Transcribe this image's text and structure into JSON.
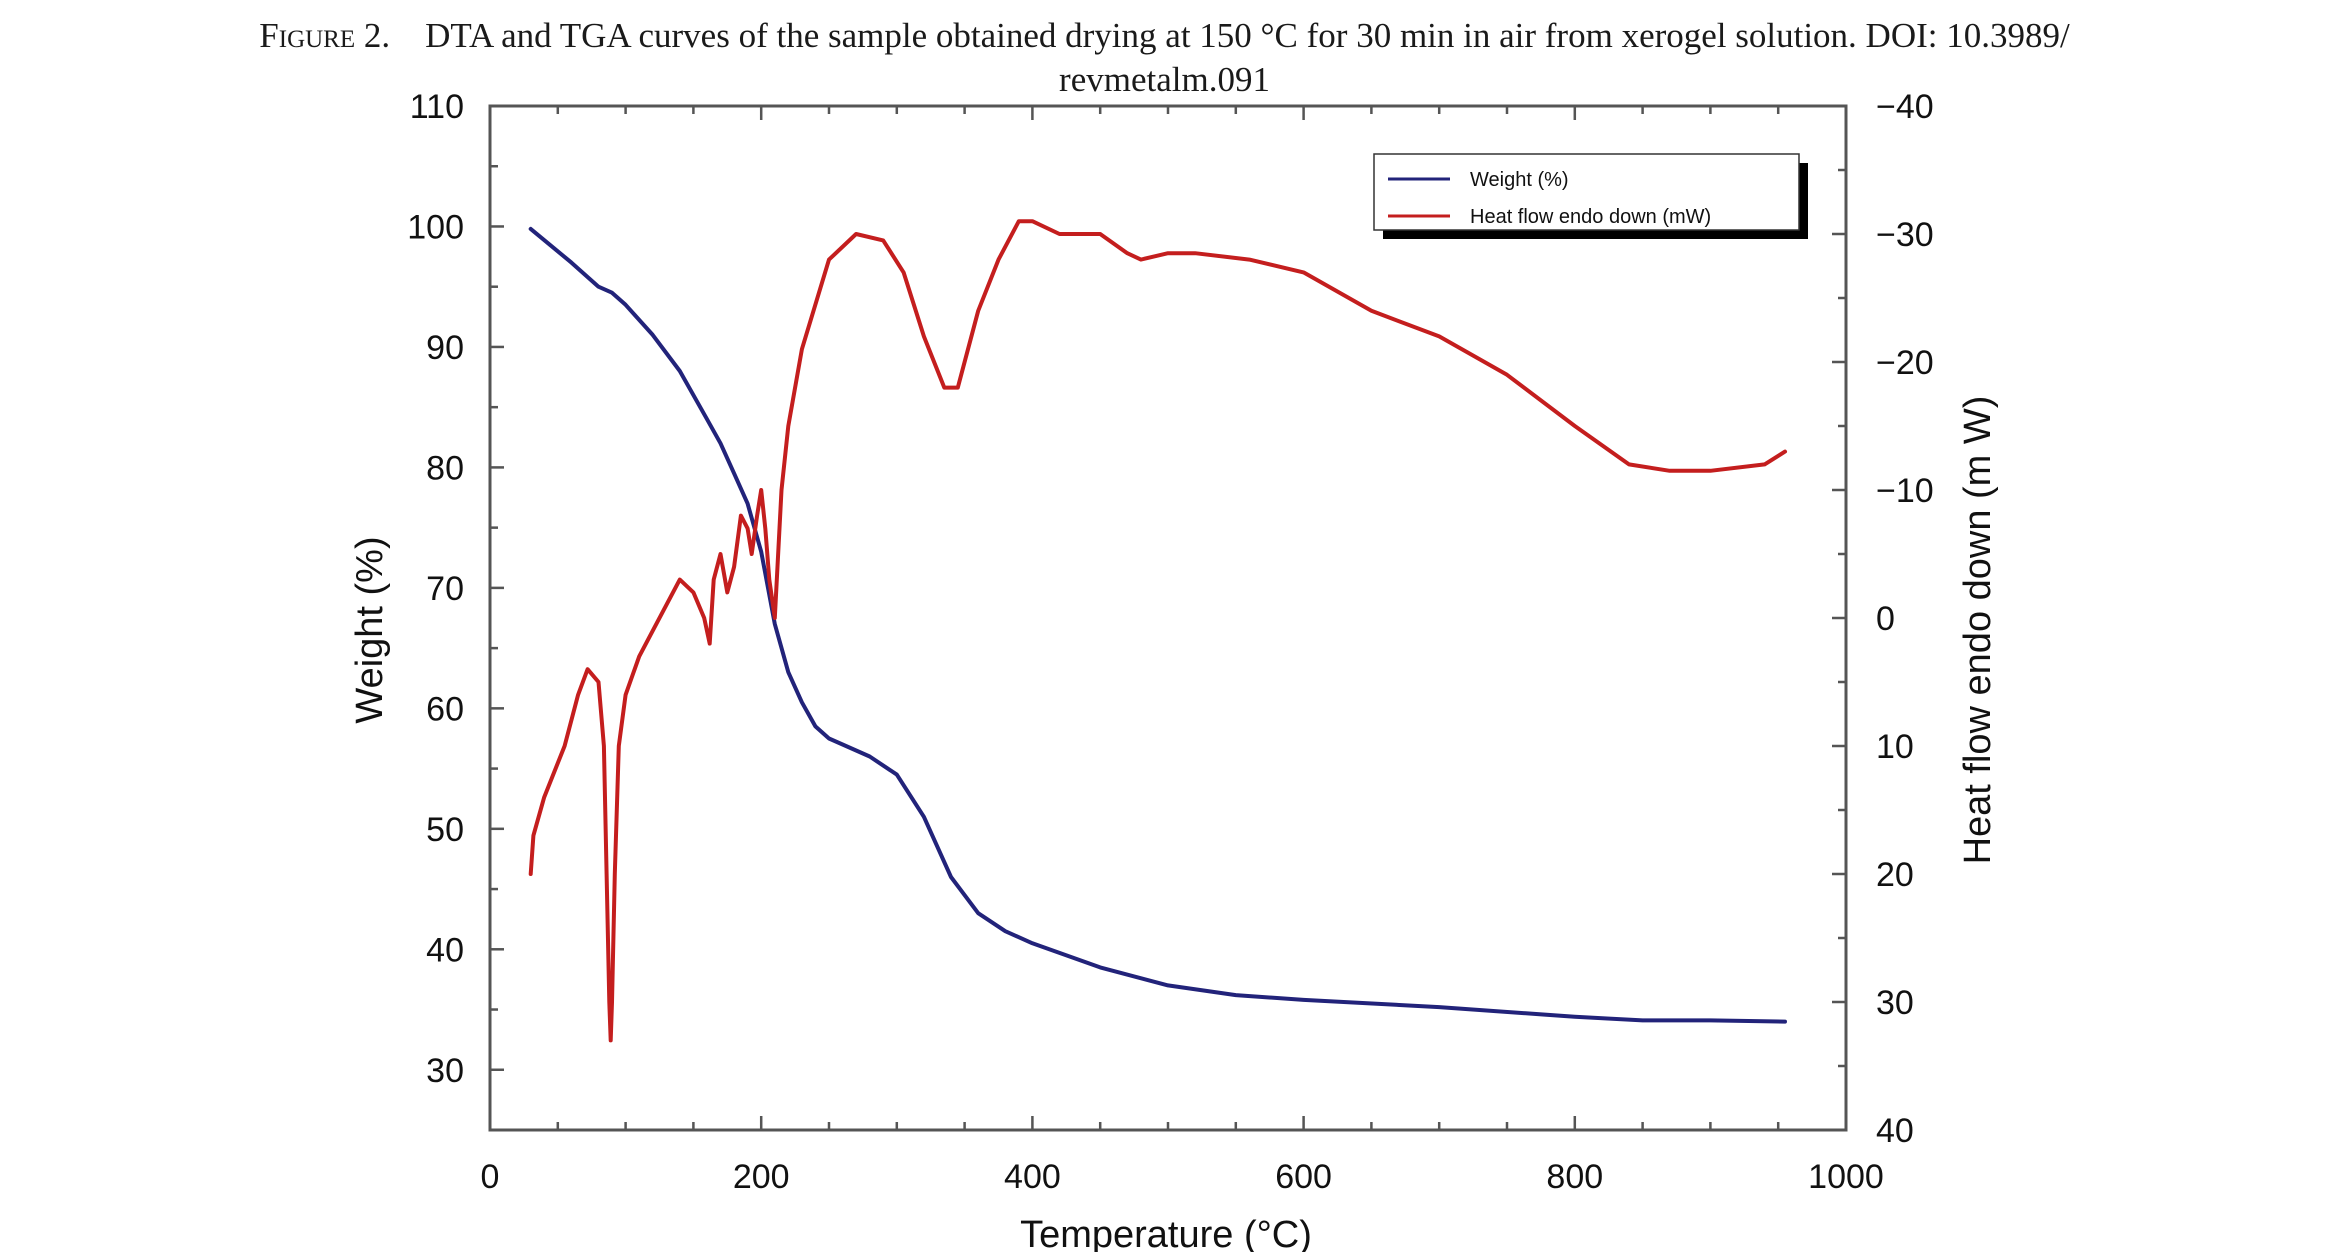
{
  "caption": {
    "label": "Figure 2.",
    "line1": "DTA and TGA curves of the sample obtained drying at 150 °C for 30 min in air from xerogel solution. DOI: 10.3989/",
    "line2": "revmetalm.091"
  },
  "chart_data": {
    "type": "line",
    "xlabel": "Temperature (°C)",
    "ylabel": "Weight (%)",
    "y2label": "Heat flow endo down (m W)",
    "xlim": [
      0,
      1000
    ],
    "ylim": [
      25,
      110
    ],
    "y2lim": [
      40,
      -40
    ],
    "x_ticks": [
      0,
      200,
      400,
      600,
      800,
      1000
    ],
    "y_ticks": [
      30,
      40,
      50,
      60,
      70,
      80,
      90,
      100,
      110
    ],
    "y2_ticks": [
      -40,
      -30,
      -20,
      -10,
      0,
      10,
      20,
      30,
      40
    ],
    "y2_tick_labels": [
      "−40",
      "−30",
      "−20",
      "−10",
      "0",
      "10",
      "20",
      "30",
      "40"
    ],
    "grid": false,
    "legend_position": "top-right",
    "series": [
      {
        "name": "Weight (%)",
        "axis": "left",
        "color": "#22237a",
        "x": [
          30,
          60,
          80,
          90,
          100,
          120,
          140,
          160,
          170,
          180,
          190,
          200,
          205,
          210,
          220,
          230,
          240,
          250,
          260,
          280,
          300,
          320,
          340,
          360,
          380,
          400,
          450,
          500,
          550,
          600,
          700,
          800,
          850,
          900,
          955
        ],
        "y": [
          99.8,
          97,
          95,
          94.5,
          93.5,
          91,
          88,
          84,
          82,
          79.5,
          77,
          73,
          70,
          67,
          63,
          60.5,
          58.5,
          57.5,
          57,
          56,
          54.5,
          51,
          46,
          43,
          41.5,
          40.5,
          38.5,
          37,
          36.2,
          35.8,
          35.2,
          34.4,
          34.1,
          34.1,
          34
        ]
      },
      {
        "name": "Heat flow endo down (mW)",
        "axis": "right",
        "color": "#c41e1e",
        "x": [
          30,
          32,
          40,
          55,
          65,
          72,
          80,
          84,
          86,
          88,
          89,
          90,
          92,
          95,
          100,
          110,
          120,
          140,
          150,
          158,
          162,
          165,
          170,
          175,
          180,
          185,
          190,
          193,
          197,
          200,
          203,
          206,
          210,
          215,
          220,
          230,
          250,
          270,
          290,
          305,
          320,
          335,
          345,
          360,
          375,
          390,
          400,
          420,
          450,
          470,
          480,
          500,
          520,
          560,
          600,
          650,
          700,
          750,
          800,
          840,
          870,
          900,
          940,
          955
        ],
        "y": [
          20,
          17,
          14,
          10,
          6,
          4,
          5,
          10,
          20,
          30,
          33,
          30,
          20,
          10,
          6,
          3,
          1,
          -3,
          -2,
          0,
          2,
          -3,
          -5,
          -2,
          -4,
          -8,
          -7,
          -5,
          -8,
          -10,
          -7,
          -3,
          0,
          -10,
          -15,
          -21,
          -28,
          -30,
          -29.5,
          -27,
          -22,
          -18,
          -18,
          -24,
          -28,
          -31,
          -31,
          -30,
          -30,
          -28.5,
          -28,
          -28.5,
          -28.5,
          -28,
          -27,
          -24,
          -22,
          -19,
          -15,
          -12,
          -11.5,
          -11.5,
          -12,
          -13
        ]
      }
    ]
  }
}
